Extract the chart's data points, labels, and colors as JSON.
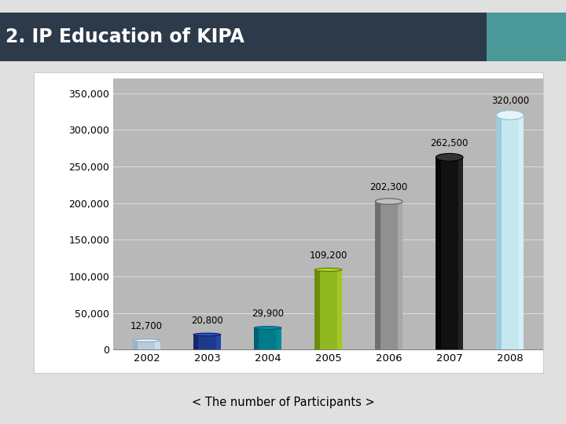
{
  "years": [
    "2002",
    "2003",
    "2004",
    "2005",
    "2006",
    "2007",
    "2008"
  ],
  "values": [
    12700,
    20800,
    29900,
    109200,
    202300,
    262500,
    320000
  ],
  "bar_colors": [
    "#b8ccd8",
    "#1e3a8a",
    "#007b8a",
    "#90b820",
    "#909090",
    "#111111",
    "#c5e8f0"
  ],
  "bar_highlight": [
    "#ddeeff",
    "#2a50cc",
    "#009aaa",
    "#b0d828",
    "#c0c0c0",
    "#333333",
    "#e5f5ff"
  ],
  "bar_shadow": [
    "#88aabb",
    "#0f2060",
    "#005566",
    "#607800",
    "#606060",
    "#000000",
    "#90c0d0"
  ],
  "labels": [
    "12,700",
    "20,800",
    "29,900",
    "109,200",
    "202,300",
    "262,500",
    "320,000"
  ],
  "title": "2. IP Education of KIPA",
  "subtitle": "< The number of Participants >",
  "title_bg": "#2d3a4a",
  "title_color": "#ffffff",
  "teal_bg": "#4a9898",
  "chart_outer_bg": "#e0e0e0",
  "chart_inner_bg": "#b8b8b8",
  "white_frame_bg": "#ffffff",
  "ylabel_ticks": [
    0,
    50000,
    100000,
    150000,
    200000,
    250000,
    300000,
    350000
  ],
  "ylim": [
    0,
    370000
  ],
  "bar_width": 0.45
}
